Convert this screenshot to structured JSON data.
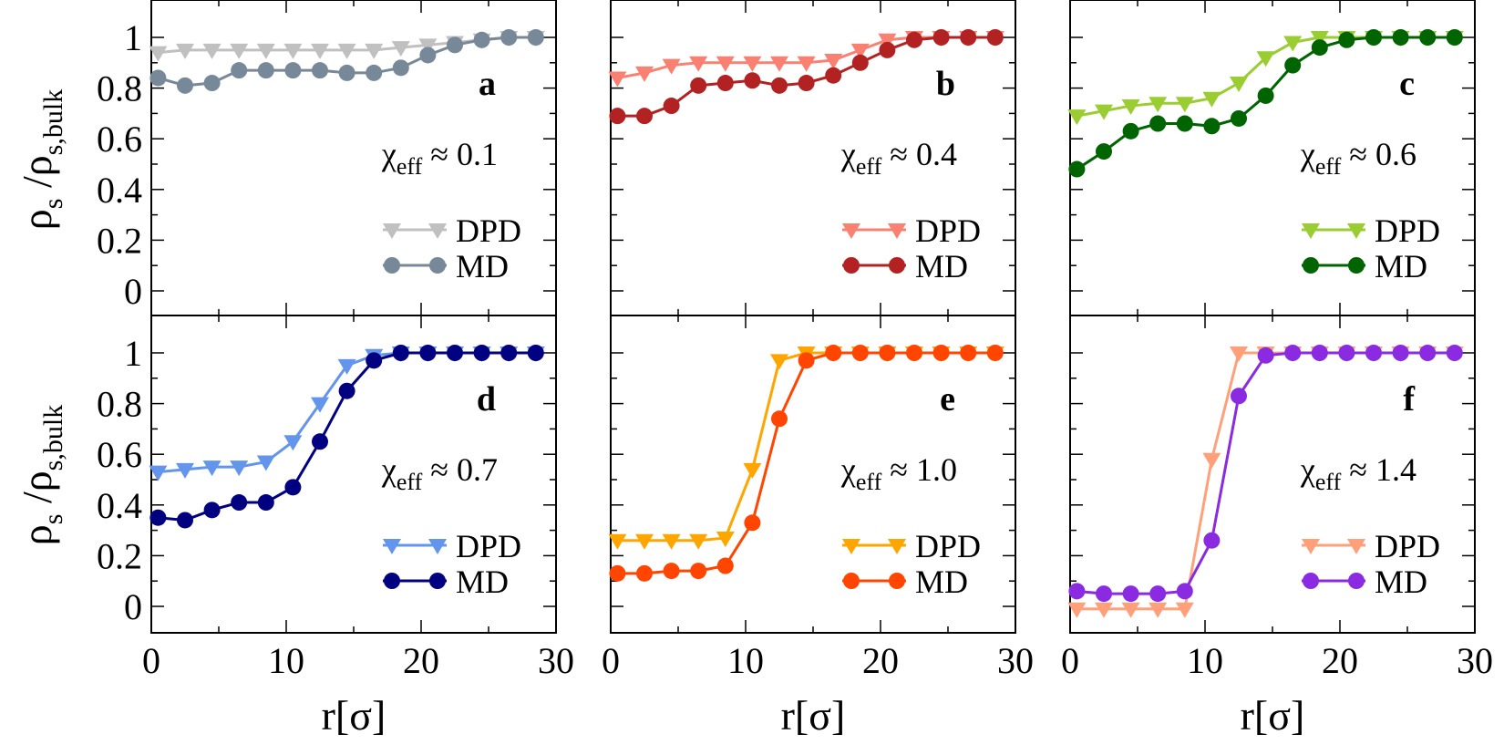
{
  "chart_data": {
    "type": "line",
    "xlabel": "r[σ]",
    "ylabel": {
      "rho": "ρ",
      "num_sub": "s",
      "slash": "/",
      "den_sub": "s,bulk"
    },
    "xlim": [
      0,
      30
    ],
    "ylim": [
      -0.1,
      1.12
    ],
    "xticks": [
      "0",
      "10",
      "20",
      "30"
    ],
    "yticks": [
      "0",
      "0.2",
      "0.4",
      "0.6",
      "0.8",
      "1"
    ],
    "legend_position": "right-middle",
    "x": [
      0.5,
      2.5,
      4.5,
      6.5,
      8.5,
      10.5,
      12.5,
      14.5,
      16.5,
      18.5,
      20.5,
      22.5,
      24.5,
      26.5,
      28.5
    ],
    "panels": [
      {
        "letter": "a",
        "chi_symbol": "χ",
        "chi_sub": "eff",
        "chi_value": "≈ 0.1",
        "series": [
          {
            "name": "DPD",
            "marker": "triangle-down",
            "color": "#c0c0c0",
            "values": [
              0.94,
              0.95,
              0.95,
              0.95,
              0.95,
              0.95,
              0.95,
              0.95,
              0.95,
              0.96,
              0.97,
              0.98,
              0.99,
              1.0,
              1.0
            ]
          },
          {
            "name": "MD",
            "marker": "circle",
            "color": "#778899",
            "values": [
              0.84,
              0.81,
              0.82,
              0.87,
              0.87,
              0.87,
              0.87,
              0.86,
              0.86,
              0.88,
              0.93,
              0.97,
              0.99,
              1.0,
              1.0
            ]
          }
        ]
      },
      {
        "letter": "b",
        "chi_symbol": "χ",
        "chi_sub": "eff",
        "chi_value": "≈ 0.4",
        "series": [
          {
            "name": "DPD",
            "marker": "triangle-down",
            "color": "#fa8072",
            "values": [
              0.84,
              0.86,
              0.89,
              0.9,
              0.9,
              0.9,
              0.9,
              0.9,
              0.91,
              0.95,
              0.99,
              1.0,
              1.0,
              1.0,
              1.0
            ]
          },
          {
            "name": "MD",
            "marker": "circle",
            "color": "#b22222",
            "values": [
              0.69,
              0.69,
              0.73,
              0.81,
              0.82,
              0.83,
              0.81,
              0.82,
              0.85,
              0.9,
              0.95,
              0.99,
              1.0,
              1.0,
              1.0
            ]
          }
        ]
      },
      {
        "letter": "c",
        "chi_symbol": "χ",
        "chi_sub": "eff",
        "chi_value": "≈ 0.6",
        "series": [
          {
            "name": "DPD",
            "marker": "triangle-down",
            "color": "#9acd32",
            "values": [
              0.69,
              0.71,
              0.73,
              0.74,
              0.74,
              0.76,
              0.82,
              0.92,
              0.98,
              1.0,
              1.0,
              1.0,
              1.0,
              1.0,
              1.0
            ]
          },
          {
            "name": "MD",
            "marker": "circle",
            "color": "#006400",
            "values": [
              0.48,
              0.55,
              0.63,
              0.66,
              0.66,
              0.65,
              0.68,
              0.77,
              0.89,
              0.96,
              0.99,
              1.0,
              1.0,
              1.0,
              1.0
            ]
          }
        ]
      },
      {
        "letter": "d",
        "chi_symbol": "χ",
        "chi_sub": "eff",
        "chi_value": "≈ 0.7",
        "series": [
          {
            "name": "DPD",
            "marker": "triangle-down",
            "color": "#6495ed",
            "values": [
              0.53,
              0.54,
              0.55,
              0.55,
              0.57,
              0.65,
              0.8,
              0.95,
              0.99,
              1.0,
              1.0,
              1.0,
              1.0,
              1.0,
              1.0
            ]
          },
          {
            "name": "MD",
            "marker": "circle",
            "color": "#000080",
            "values": [
              0.35,
              0.34,
              0.38,
              0.41,
              0.41,
              0.47,
              0.65,
              0.85,
              0.97,
              1.0,
              1.0,
              1.0,
              1.0,
              1.0,
              1.0
            ]
          }
        ]
      },
      {
        "letter": "e",
        "chi_symbol": "χ",
        "chi_sub": "eff",
        "chi_value": "≈ 1.0",
        "series": [
          {
            "name": "DPD",
            "marker": "triangle-down",
            "color": "#ffa500",
            "values": [
              0.26,
              0.26,
              0.26,
              0.26,
              0.27,
              0.54,
              0.97,
              1.0,
              1.0,
              1.0,
              1.0,
              1.0,
              1.0,
              1.0,
              1.0
            ]
          },
          {
            "name": "MD",
            "marker": "circle",
            "color": "#ff4500",
            "values": [
              0.13,
              0.13,
              0.14,
              0.14,
              0.16,
              0.33,
              0.74,
              0.97,
              1.0,
              1.0,
              1.0,
              1.0,
              1.0,
              1.0,
              1.0
            ]
          }
        ]
      },
      {
        "letter": "f",
        "chi_symbol": "χ",
        "chi_sub": "eff",
        "chi_value": "≈ 1.4",
        "series": [
          {
            "name": "DPD",
            "marker": "triangle-down",
            "color": "#ffa07a",
            "values": [
              -0.01,
              -0.01,
              -0.01,
              -0.01,
              -0.01,
              0.58,
              1.0,
              1.0,
              1.0,
              1.0,
              1.0,
              1.0,
              1.0,
              1.0,
              1.0
            ]
          },
          {
            "name": "MD",
            "marker": "circle",
            "color": "#8a2be2",
            "values": [
              0.06,
              0.05,
              0.05,
              0.05,
              0.06,
              0.26,
              0.83,
              0.99,
              1.0,
              1.0,
              1.0,
              1.0,
              1.0,
              1.0,
              1.0
            ]
          }
        ]
      }
    ]
  }
}
